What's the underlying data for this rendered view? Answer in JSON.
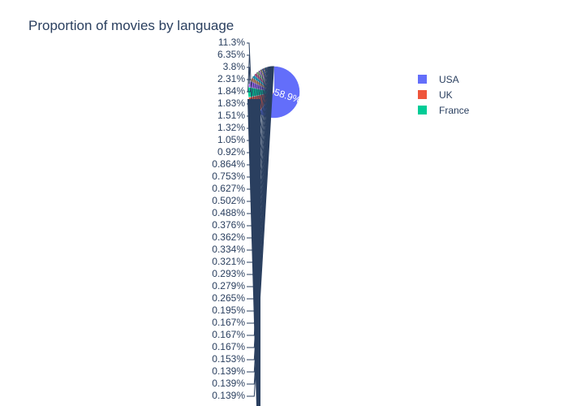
{
  "chart_data": {
    "type": "pie",
    "title": "Proportion of movies by language",
    "legend": {
      "placement": "top-right",
      "entries": [
        "USA",
        "UK",
        "France"
      ]
    },
    "inside_label": "58.9%",
    "slices": [
      {
        "label": "USA",
        "value": 58.9,
        "color": "#636efa"
      },
      {
        "label": "UK",
        "value": 11.3,
        "color": "#ef553b"
      },
      {
        "label": "France",
        "value": 6.35,
        "color": "#00cc96"
      },
      {
        "value": 3.8,
        "color": "#ab63fa"
      },
      {
        "value": 2.31,
        "color": "#ffa15a"
      },
      {
        "value": 1.84,
        "color": "#19d3f3"
      },
      {
        "value": 1.83,
        "color": "#ff6692"
      },
      {
        "value": 1.51,
        "color": "#b6e880"
      },
      {
        "value": 1.32,
        "color": "#ff97ff"
      },
      {
        "value": 1.05,
        "color": "#fecb52"
      },
      {
        "value": 0.92,
        "color": "#636efa"
      },
      {
        "value": 0.864,
        "color": "#ef553b"
      },
      {
        "value": 0.753,
        "color": "#00cc96"
      },
      {
        "value": 0.627,
        "color": "#ab63fa"
      },
      {
        "value": 0.502,
        "color": "#ffa15a"
      },
      {
        "value": 0.488,
        "color": "#19d3f3"
      },
      {
        "value": 0.376,
        "color": "#ff6692"
      },
      {
        "value": 0.362,
        "color": "#b6e880"
      },
      {
        "value": 0.334,
        "color": "#ff97ff"
      },
      {
        "value": 0.321,
        "color": "#fecb52"
      },
      {
        "value": 0.293,
        "color": "#636efa"
      },
      {
        "value": 0.279,
        "color": "#ef553b"
      },
      {
        "value": 0.265,
        "color": "#00cc96"
      },
      {
        "value": 0.195,
        "color": "#ab63fa"
      },
      {
        "value": 0.167,
        "color": "#ffa15a"
      },
      {
        "value": 0.167,
        "color": "#19d3f3"
      },
      {
        "value": 0.167,
        "color": "#ff6692"
      },
      {
        "value": 0.153,
        "color": "#b6e880"
      },
      {
        "value": 0.139,
        "color": "#ff97ff"
      },
      {
        "value": 0.139,
        "color": "#fecb52"
      },
      {
        "value": 0.139,
        "color": "#636efa"
      }
    ],
    "outside_labels": [
      "11.3%",
      "6.35%",
      "3.8%",
      "2.31%",
      "1.84%",
      "1.83%",
      "1.51%",
      "1.32%",
      "1.05%",
      "0.92%",
      "0.864%",
      "0.753%",
      "0.627%",
      "0.502%",
      "0.488%",
      "0.376%",
      "0.362%",
      "0.334%",
      "0.321%",
      "0.293%",
      "0.279%",
      "0.265%",
      "0.195%",
      "0.167%",
      "0.167%",
      "0.167%",
      "0.153%",
      "0.139%",
      "0.139%",
      "0.139%"
    ],
    "colors": {
      "title": "#2a3f5f",
      "leader_line": "#2a3f5f"
    }
  }
}
